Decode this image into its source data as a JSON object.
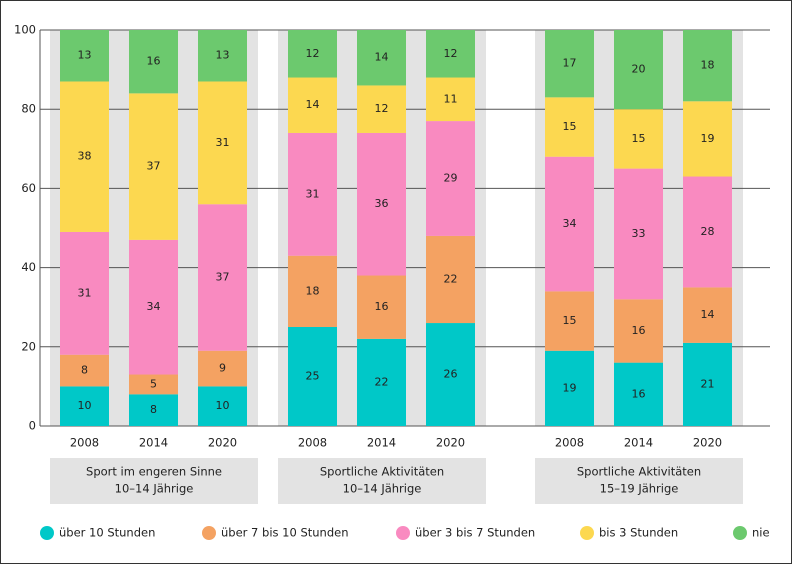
{
  "chart_data": {
    "type": "stacked-bar",
    "categories": [
      "2008",
      "2014",
      "2020",
      "2008",
      "2014",
      "2020",
      "2008",
      "2014",
      "2020"
    ],
    "groups": [
      {
        "lines": [
          "Sport im engeren Sinne",
          "10–14 Jährige"
        ]
      },
      {
        "lines": [
          "Sportliche Aktivitäten",
          "10–14 Jährige"
        ]
      },
      {
        "lines": [
          "Sportliche Aktivitäten",
          "15–19 Jährige"
        ]
      }
    ],
    "series": [
      {
        "name": "über 10 Stunden",
        "color": "#00c8c8",
        "values": [
          10,
          8,
          10,
          25,
          22,
          26,
          19,
          16,
          21
        ]
      },
      {
        "name": "über 7 bis 10 Stunden",
        "color": "#f4a262",
        "values": [
          8,
          5,
          9,
          18,
          16,
          22,
          15,
          16,
          14
        ]
      },
      {
        "name": "über 3 bis 7 Stunden",
        "color": "#f98ac0",
        "values": [
          31,
          34,
          37,
          31,
          36,
          29,
          34,
          33,
          28
        ]
      },
      {
        "name": "bis 3 Stunden",
        "color": "#fcd850",
        "values": [
          38,
          37,
          31,
          14,
          12,
          11,
          15,
          15,
          19
        ]
      },
      {
        "name": "nie",
        "color": "#6cc96e",
        "values": [
          13,
          16,
          13,
          12,
          14,
          12,
          17,
          20,
          18
        ]
      }
    ],
    "ylim": [
      0,
      100
    ],
    "yticks": [
      0,
      20,
      40,
      60,
      80,
      100
    ],
    "grid": true,
    "legend": "bottom"
  }
}
